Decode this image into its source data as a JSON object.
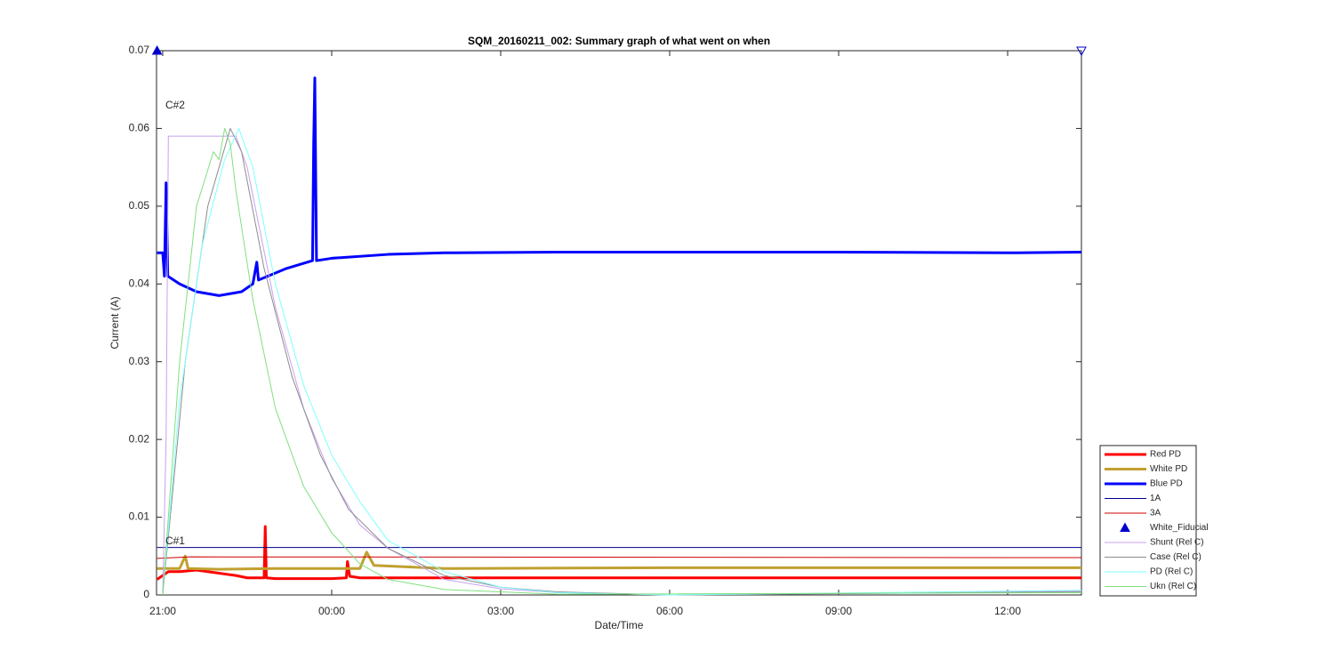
{
  "chart_data": {
    "type": "line",
    "title": "SQM_20160211_002: Summary graph of what went on when",
    "x_label": "Date/Time",
    "y_label": "Current (A)",
    "xlim": [
      20.89,
      37.31
    ],
    "xticks": [
      {
        "value": 21,
        "label": "21:00"
      },
      {
        "value": 24,
        "label": "00:00"
      },
      {
        "value": 27,
        "label": "03:00"
      },
      {
        "value": 30,
        "label": "06:00"
      },
      {
        "value": 33,
        "label": "09:00"
      },
      {
        "value": 36,
        "label": "12:00"
      }
    ],
    "ylim": [
      0,
      0.07
    ],
    "yticks": [
      0,
      0.01,
      0.02,
      0.03,
      0.04,
      0.05,
      0.06,
      0.07
    ],
    "legend": "southeast",
    "annotations": [
      {
        "text": "C#2",
        "x": 21.0,
        "y": 0.0629
      },
      {
        "text": "C#1",
        "x": 21.0,
        "y": 0.0069
      }
    ],
    "series": [
      {
        "name": "Red PD",
        "color": "#ff0000",
        "width": 3,
        "x": [
          20.9,
          21.1,
          21.3,
          21.6,
          22.0,
          22.3,
          22.5,
          22.8,
          22.82,
          22.84,
          23.0,
          24.0,
          24.26,
          24.28,
          24.32,
          24.5,
          25,
          30,
          37.31
        ],
        "values": [
          0.002,
          0.003,
          0.003,
          0.0032,
          0.0028,
          0.0025,
          0.0022,
          0.0022,
          0.0088,
          0.0022,
          0.0021,
          0.0021,
          0.0022,
          0.0043,
          0.0024,
          0.0022,
          0.0022,
          0.0022,
          0.0022
        ]
      },
      {
        "name": "White PD",
        "color": "#c0a030",
        "width": 3,
        "x": [
          20.9,
          21.3,
          21.4,
          21.45,
          22.0,
          23.0,
          24.5,
          24.62,
          24.75,
          26,
          30,
          37.31
        ],
        "values": [
          0.0034,
          0.0034,
          0.005,
          0.0034,
          0.0033,
          0.0034,
          0.0034,
          0.0055,
          0.0038,
          0.0034,
          0.0035,
          0.0035
        ]
      },
      {
        "name": "Blue PD",
        "color": "#0000ff",
        "width": 3,
        "x": [
          20.9,
          21.0,
          21.03,
          21.06,
          21.09,
          21.3,
          21.6,
          22.0,
          22.4,
          22.6,
          22.67,
          22.7,
          23.2,
          23.66,
          23.68,
          23.7,
          23.73,
          24.0,
          25,
          26,
          28,
          30,
          33,
          36,
          37.31
        ],
        "values": [
          0.044,
          0.044,
          0.041,
          0.053,
          0.041,
          0.04,
          0.039,
          0.0385,
          0.039,
          0.04,
          0.0428,
          0.0405,
          0.042,
          0.043,
          0.058,
          0.0665,
          0.043,
          0.0433,
          0.0438,
          0.044,
          0.0441,
          0.0441,
          0.0441,
          0.044,
          0.0441
        ]
      },
      {
        "name": "1A",
        "color": "#00008b",
        "width": 1,
        "x": [
          20.9,
          37.31
        ],
        "values": [
          0.0061,
          0.0061
        ]
      },
      {
        "name": "3A",
        "color": "#d00000",
        "width": 1,
        "x": [
          20.9,
          21.5,
          37.31
        ],
        "values": [
          0.0047,
          0.0049,
          0.0048
        ]
      },
      {
        "name": "White_Fiducial",
        "color": "#0000cd",
        "marker": "triangle",
        "x": [
          20.9,
          37.31
        ],
        "values": [
          0.07,
          0.07
        ],
        "marker_filled": [
          true,
          false
        ]
      },
      {
        "name": "Shunt (Rel C)",
        "color": "#c8a0f0",
        "width": 1,
        "x": [
          21.0,
          21.06,
          21.1,
          22.3,
          22.5,
          23.0,
          23.5,
          24.0,
          24.5,
          25.0,
          26.0,
          27.0,
          28.0,
          30.0,
          37.31
        ],
        "values": [
          0,
          0.02,
          0.059,
          0.059,
          0.055,
          0.037,
          0.024,
          0.015,
          0.009,
          0.006,
          0.002,
          0.0008,
          0.0003,
          0,
          0.0005
        ]
      },
      {
        "name": "Case (Rel C)",
        "color": "#8c8c8c",
        "width": 1,
        "x": [
          21.0,
          21.4,
          21.8,
          22.2,
          22.4,
          22.8,
          23.3,
          23.8,
          24.3,
          25.0,
          26.0,
          27.0,
          28.0,
          30.0,
          37.31
        ],
        "values": [
          0,
          0.03,
          0.05,
          0.06,
          0.057,
          0.042,
          0.028,
          0.018,
          0.011,
          0.006,
          0.0025,
          0.001,
          0.0004,
          0,
          0.0004
        ]
      },
      {
        "name": "PD (Rel C)",
        "color": "#7fffff",
        "width": 1,
        "x": [
          21.0,
          21.3,
          21.7,
          22.1,
          22.35,
          22.6,
          23.0,
          23.5,
          24.0,
          24.5,
          25.0,
          26.0,
          27.0,
          28.0,
          30.0,
          37.31
        ],
        "values": [
          0,
          0.025,
          0.045,
          0.056,
          0.06,
          0.055,
          0.04,
          0.027,
          0.018,
          0.012,
          0.007,
          0.003,
          0.001,
          0.0003,
          0,
          0.0006
        ]
      },
      {
        "name": "Ukn (Rel C)",
        "color": "#80e080",
        "width": 1,
        "x": [
          21.0,
          21.3,
          21.6,
          21.9,
          22.0,
          22.1,
          22.2,
          22.3,
          22.6,
          23.0,
          23.5,
          24.0,
          24.5,
          25.0,
          26.0,
          28.0,
          37.31
        ],
        "values": [
          0,
          0.03,
          0.05,
          0.057,
          0.056,
          0.06,
          0.058,
          0.052,
          0.038,
          0.024,
          0.014,
          0.008,
          0.004,
          0.002,
          0.0007,
          0.0001,
          0.0003
        ]
      }
    ]
  }
}
